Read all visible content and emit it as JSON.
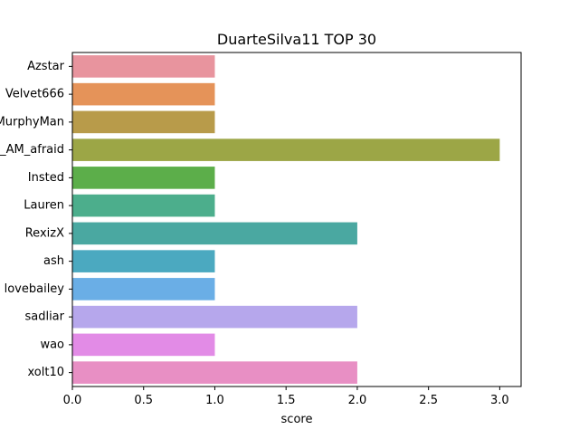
{
  "chart_data": {
    "type": "bar",
    "orientation": "horizontal",
    "title": "DuarteSilva11 TOP 30",
    "xlabel": "score",
    "ylabel": "",
    "categories": [
      "Azstar",
      "Velvet666",
      "MurphyMan",
      "I_AM_afraid",
      "Insted",
      "Lauren",
      "RexizX",
      "ash",
      "lovebailey",
      "sadliar",
      "wao",
      "xolt10"
    ],
    "values": [
      1,
      1,
      1,
      3,
      1,
      1,
      2,
      1,
      1,
      2,
      1,
      2
    ],
    "colors": [
      "#e8949e",
      "#e59359",
      "#b89b4a",
      "#9ca646",
      "#5cae4a",
      "#4cae8c",
      "#4aa8a1",
      "#4ba9c0",
      "#6aaee6",
      "#b6a7ec",
      "#e28be6",
      "#e88fc4"
    ],
    "xlim": [
      0,
      3.15
    ],
    "xticks": [
      0.0,
      0.5,
      1.0,
      1.5,
      2.0,
      2.5,
      3.0
    ],
    "xtick_labels": [
      "0.0",
      "0.5",
      "1.0",
      "1.5",
      "2.0",
      "2.5",
      "3.0"
    ],
    "grid": false,
    "legend": "none"
  }
}
